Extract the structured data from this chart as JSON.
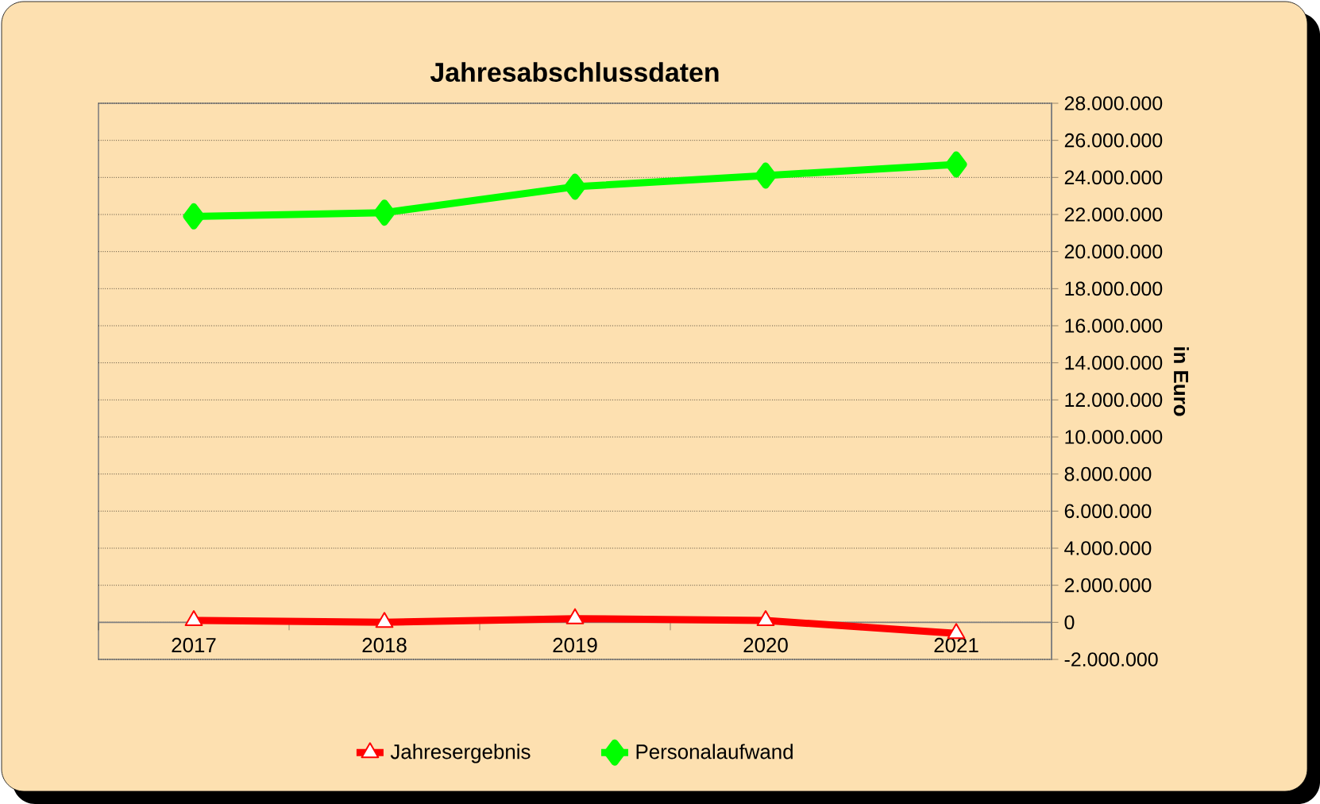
{
  "chart_data": {
    "type": "line",
    "title": "Jahresabschlussdaten",
    "ylabel": "in Euro",
    "categories": [
      "2017",
      "2018",
      "2019",
      "2020",
      "2021"
    ],
    "series": [
      {
        "name": "Jahresergebnis",
        "color": "#ff0000",
        "marker": "triangle",
        "values": [
          100000,
          0,
          200000,
          100000,
          -600000
        ]
      },
      {
        "name": "Personalaufwand",
        "color": "#00ff00",
        "marker": "diamond",
        "values": [
          21900000,
          22100000,
          23500000,
          24100000,
          24700000
        ]
      }
    ],
    "ylim": [
      -2000000,
      28000000
    ],
    "yticks": [
      {
        "value": -2000000,
        "label": "-2.000.000"
      },
      0,
      {
        "value": 2000000,
        "label": "2.000.000"
      },
      {
        "value": 4000000,
        "label": "4.000.000"
      },
      {
        "value": 6000000,
        "label": "6.000.000"
      },
      {
        "value": 8000000,
        "label": "8.000.000"
      },
      {
        "value": 10000000,
        "label": "10.000.000"
      },
      {
        "value": 12000000,
        "label": "12.000.000"
      },
      {
        "value": 14000000,
        "label": "14.000.000"
      },
      {
        "value": 16000000,
        "label": "16.000.000"
      },
      {
        "value": 18000000,
        "label": "18.000.000"
      },
      {
        "value": 20000000,
        "label": "20.000.000"
      },
      {
        "value": 22000000,
        "label": "22.000.000"
      },
      {
        "value": 24000000,
        "label": "24.000.000"
      },
      {
        "value": 26000000,
        "label": "26.000.000"
      },
      {
        "value": 28000000,
        "label": "28.000.000"
      }
    ],
    "grid": "y",
    "legend": "bottom"
  }
}
